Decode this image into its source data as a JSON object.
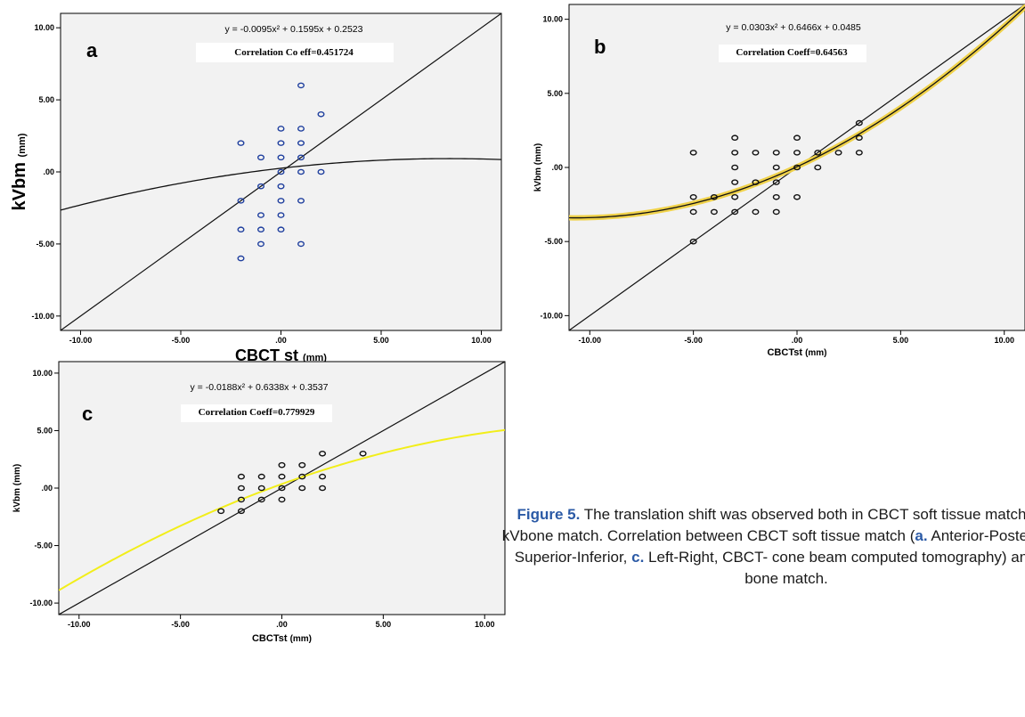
{
  "caption": {
    "fig_label": "Figure 5.",
    "text_1": " The translation shift was observed both in CBCT soft tissue match and kVbone match. Correlation between CBCT soft tissue match (",
    "a_label": "a.",
    "text_2": " Anterior-Posterior, ",
    "b_label": "b.",
    "text_3": " Superior-Inferior, ",
    "c_label": "c.",
    "text_4": " Left-Right, CBCT- cone beam computed tomography) and kV bone match."
  },
  "chart_data": [
    {
      "type": "scatter",
      "panel_label": "a",
      "equation": "y = -0.0095x² + 0.1595x + 0.2523",
      "correlation": "Correlation Co eff=0.451724",
      "xlabel_main": "CBCT st",
      "xlabel_unit": "(mm)",
      "ylabel_main": "kVbm",
      "ylabel_unit": "(mm)",
      "xlim": [
        -11,
        11
      ],
      "ylim": [
        -11,
        11
      ],
      "x_ticks": [
        "-10.00",
        "-5.00",
        ".00",
        "5.00",
        "10.00"
      ],
      "y_ticks": [
        "-10.00",
        "-5.00",
        ".00",
        "5.00",
        "10.00"
      ],
      "grid": false,
      "marker_color": "#1f3f9e",
      "fit_color": "#111111",
      "fit_coeffs": [
        -0.0095,
        0.1595,
        0.2523
      ],
      "points": [
        [
          -2,
          2
        ],
        [
          -1,
          1
        ],
        [
          0,
          3
        ],
        [
          0,
          2
        ],
        [
          0,
          1
        ],
        [
          0,
          0
        ],
        [
          0,
          -1
        ],
        [
          0,
          -2
        ],
        [
          0,
          -3
        ],
        [
          0,
          -4
        ],
        [
          1,
          6
        ],
        [
          1,
          3
        ],
        [
          1,
          2
        ],
        [
          1,
          1
        ],
        [
          1,
          0
        ],
        [
          1,
          -2
        ],
        [
          1,
          -5
        ],
        [
          2,
          4
        ],
        [
          2,
          0
        ],
        [
          -1,
          -1
        ],
        [
          -1,
          -3
        ],
        [
          -1,
          -4
        ],
        [
          -1,
          -5
        ],
        [
          -2,
          -2
        ],
        [
          -2,
          -4
        ],
        [
          -2,
          -6
        ]
      ]
    },
    {
      "type": "scatter",
      "panel_label": "b",
      "equation": "y = 0.0303x² + 0.6466x + 0.0485",
      "correlation": "Correlation Coeff=0.64563",
      "xlabel_main": "CBCTst",
      "xlabel_unit": "(mm)",
      "ylabel_main": "kVbm",
      "ylabel_unit": "(mm)",
      "xlim": [
        -11,
        11
      ],
      "ylim": [
        -11,
        11
      ],
      "x_ticks": [
        "-10.00",
        "-5.00",
        ".00",
        "5.00",
        "10.00"
      ],
      "y_ticks": [
        "-10.00",
        "-5.00",
        ".00",
        "5.00",
        "10.00"
      ],
      "grid": false,
      "marker_color": "#111111",
      "fit_color": "#111111",
      "fit_halo_color": "#f0d24a",
      "fit_coeffs": [
        0.0303,
        0.6466,
        0.0485
      ],
      "points": [
        [
          -5,
          1
        ],
        [
          -5,
          -2
        ],
        [
          -5,
          -3
        ],
        [
          -5,
          -5
        ],
        [
          -4,
          -2
        ],
        [
          -4,
          -3
        ],
        [
          -3,
          2
        ],
        [
          -3,
          1
        ],
        [
          -3,
          0
        ],
        [
          -3,
          -1
        ],
        [
          -3,
          -2
        ],
        [
          -3,
          -3
        ],
        [
          -2,
          1
        ],
        [
          -2,
          -1
        ],
        [
          -2,
          -3
        ],
        [
          -1,
          1
        ],
        [
          -1,
          0
        ],
        [
          -1,
          -1
        ],
        [
          -1,
          -2
        ],
        [
          -1,
          -3
        ],
        [
          0,
          2
        ],
        [
          0,
          1
        ],
        [
          0,
          0
        ],
        [
          0,
          -2
        ],
        [
          1,
          1
        ],
        [
          1,
          0
        ],
        [
          2,
          1
        ],
        [
          3,
          3
        ],
        [
          3,
          2
        ],
        [
          3,
          1
        ]
      ]
    },
    {
      "type": "scatter",
      "panel_label": "c",
      "equation": "y = -0.0188x² + 0.6338x + 0.3537",
      "correlation": "Correlation Coeff=0.779929",
      "xlabel_main": "CBCTst",
      "xlabel_unit": "(mm)",
      "ylabel_main": "kVbm",
      "ylabel_unit": "(mm)",
      "xlim": [
        -11,
        11
      ],
      "ylim": [
        -11,
        11
      ],
      "x_ticks": [
        "-10.00",
        "-5.00",
        ".00",
        "5.00",
        "10.00"
      ],
      "y_ticks": [
        "-10.00",
        "-5.00",
        ".00",
        "5.00",
        "10.00"
      ],
      "grid": false,
      "marker_color": "#111111",
      "fit_color": "#f2ee1a",
      "fit_coeffs": [
        -0.0188,
        0.6338,
        0.3537
      ],
      "points": [
        [
          -3,
          -2
        ],
        [
          -2,
          1
        ],
        [
          -2,
          0
        ],
        [
          -2,
          -1
        ],
        [
          -2,
          -2
        ],
        [
          -1,
          1
        ],
        [
          -1,
          0
        ],
        [
          -1,
          -1
        ],
        [
          0,
          2
        ],
        [
          0,
          1
        ],
        [
          0,
          0
        ],
        [
          0,
          -1
        ],
        [
          1,
          2
        ],
        [
          1,
          1
        ],
        [
          1,
          0
        ],
        [
          2,
          3
        ],
        [
          2,
          1
        ],
        [
          2,
          0
        ],
        [
          4,
          3
        ]
      ]
    }
  ]
}
